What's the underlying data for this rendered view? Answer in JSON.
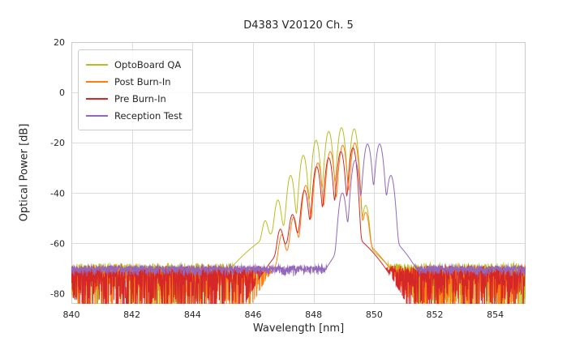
{
  "chart_data": {
    "type": "line",
    "title": "D4383 V20120 Ch. 5",
    "xlabel": "Wavelength [nm]",
    "ylabel": "Optical Power [dB]",
    "xlim": [
      840,
      855
    ],
    "ylim": [
      -84,
      20
    ],
    "xticks": [
      840,
      842,
      844,
      846,
      848,
      850,
      852,
      854
    ],
    "yticks": [
      20,
      0,
      -20,
      -40,
      -60,
      -80
    ],
    "grid": true,
    "grid_color": "#dcdcdc",
    "frame_color": "#cccccc",
    "background": "#ffffff",
    "tick_label_color": "#262626",
    "legend_position": "upper left",
    "series": [
      {
        "name": "OptoBoard QA",
        "color": "#bcbd22",
        "sigma": 0.09,
        "modes": [
          [
            846.4,
            -52
          ],
          [
            846.82,
            -43
          ],
          [
            847.24,
            -33
          ],
          [
            847.66,
            -25
          ],
          [
            848.08,
            -19
          ],
          [
            848.5,
            -15.5
          ],
          [
            848.92,
            -14
          ],
          [
            849.34,
            -14.5
          ],
          [
            849.72,
            -45
          ]
        ],
        "broad": {
          "center": 847.9,
          "sigma": 1.3,
          "peak": -52
        },
        "noise": {
          "floor": -69,
          "spike": 19,
          "wiggle": 1.2,
          "seed": 11
        }
      },
      {
        "name": "Post Burn-In",
        "color": "#ff7f0e",
        "sigma": 0.09,
        "modes": [
          [
            846.95,
            -57
          ],
          [
            847.34,
            -50
          ],
          [
            847.74,
            -37
          ],
          [
            848.14,
            -28
          ],
          [
            848.55,
            -23.5
          ],
          [
            848.96,
            -21
          ],
          [
            849.36,
            -20
          ],
          [
            849.72,
            -48
          ]
        ],
        "broad": {
          "center": 848.6,
          "sigma": 1.0,
          "peak": -54
        },
        "noise": {
          "floor": -70,
          "spike": 19,
          "wiggle": 1.2,
          "seed": 22
        }
      },
      {
        "name": "Pre Burn-In",
        "color": "#d62728",
        "sigma": 0.09,
        "modes": [
          [
            846.9,
            -55
          ],
          [
            847.3,
            -49
          ],
          [
            847.7,
            -39
          ],
          [
            848.1,
            -29.5
          ],
          [
            848.5,
            -26
          ],
          [
            848.9,
            -23.5
          ],
          [
            849.3,
            -22
          ]
        ],
        "broad": {
          "center": 848.4,
          "sigma": 1.0,
          "peak": -53
        },
        "noise": {
          "floor": -70,
          "spike": 19,
          "wiggle": 1.2,
          "seed": 33
        }
      },
      {
        "name": "Reception Test",
        "color": "#9467bd",
        "sigma": 0.095,
        "modes": [
          [
            848.95,
            -40
          ],
          [
            849.37,
            -27
          ],
          [
            849.78,
            -20.5
          ],
          [
            850.18,
            -20.5
          ],
          [
            850.55,
            -33
          ]
        ],
        "broad": {
          "center": 849.9,
          "sigma": 0.8,
          "peak": -55
        },
        "noise": {
          "floor": -69.5,
          "spike": 3,
          "wiggle": 0.7,
          "seed": 44
        }
      }
    ]
  }
}
